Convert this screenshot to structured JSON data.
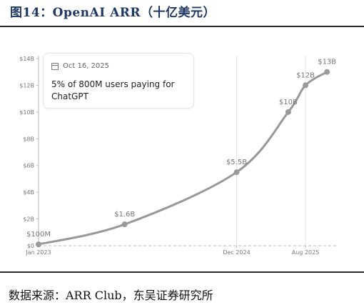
{
  "figure": {
    "title": "图14：OpenAI ARR（十亿美元）",
    "source": "数据来源：ARR Club，东吴证券研究所"
  },
  "callout": {
    "date": "Oct 16, 2025",
    "text": "5% of 800M users paying for ChatGPT"
  },
  "colors": {
    "line": "#999999",
    "grid": "#dddddd",
    "text": "#777777",
    "title": "#1f3864"
  },
  "chart_data": {
    "type": "line",
    "title": "",
    "xlabel": "",
    "ylabel": "",
    "ylim": [
      0,
      14
    ],
    "y_ticks": [
      "$0",
      "$2B",
      "$4B",
      "$6B",
      "$8B",
      "$10B",
      "$12B",
      "$14B"
    ],
    "x_ticks": [
      {
        "label": "Jan 2023",
        "x": 0
      },
      {
        "label": "Dec 2024",
        "x": 23
      },
      {
        "label": "Aug 2025",
        "x": 31
      }
    ],
    "grid": "vertical",
    "series": [
      {
        "name": "",
        "points": [
          {
            "x": 0,
            "y": 0.1,
            "label": "$100M"
          },
          {
            "x": 10,
            "y": 1.6,
            "label": "$1.6B"
          },
          {
            "x": 23,
            "y": 5.5,
            "label": "$5.5B"
          },
          {
            "x": 29,
            "y": 10,
            "label": "$10B"
          },
          {
            "x": 31,
            "y": 12,
            "label": "$12B"
          },
          {
            "x": 33.5,
            "y": 13,
            "label": "$13B"
          }
        ]
      }
    ]
  }
}
